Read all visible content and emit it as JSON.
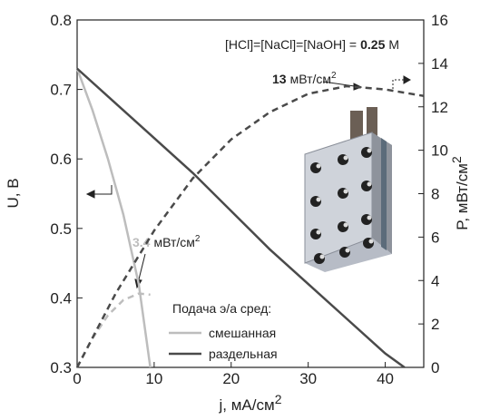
{
  "chart_data": {
    "type": "line",
    "xlabel": {
      "main": "j, мА/см",
      "sup": "2"
    },
    "ylabel": "U, В",
    "y2label": {
      "main": "P, мВт/см",
      "sup": "2"
    },
    "xlim": [
      0,
      45
    ],
    "xticks": [
      0,
      10,
      20,
      30,
      40
    ],
    "ylim": [
      0.3,
      0.8
    ],
    "yticks": [
      0.3,
      0.4,
      0.5,
      0.6,
      0.7,
      0.8
    ],
    "y2lim": [
      0,
      16
    ],
    "y2ticks": [
      0,
      2,
      4,
      6,
      8,
      10,
      12,
      14,
      16
    ],
    "legend_title": "Подача э/а сред:",
    "series": [
      {
        "name": "смешанная",
        "color": "#bdbdbd",
        "dash": false,
        "x": [
          0,
          2,
          4,
          6,
          8,
          9.5
        ],
        "values": [
          0.73,
          0.67,
          0.6,
          0.52,
          0.42,
          0.3
        ]
      },
      {
        "name": "раздельная",
        "color": "#4a4a4a",
        "dash": false,
        "x": [
          0,
          5,
          10,
          15,
          20,
          25,
          30,
          35,
          40,
          42.5
        ],
        "values": [
          0.73,
          0.68,
          0.63,
          0.58,
          0.525,
          0.47,
          0.42,
          0.37,
          0.32,
          0.3
        ]
      },
      {
        "color": "#bdbdbd",
        "dash": true,
        "axis": "y2",
        "x": [
          0,
          2,
          4,
          6,
          8,
          9.5
        ],
        "values": [
          0,
          1.34,
          2.4,
          3.1,
          3.4,
          3.35
        ]
      },
      {
        "color": "#4a4a4a",
        "dash": true,
        "axis": "y2",
        "x": [
          0,
          5,
          10,
          15,
          20,
          25,
          30,
          35,
          40,
          45
        ],
        "values": [
          0,
          3.4,
          6.3,
          8.7,
          10.5,
          11.75,
          12.6,
          12.95,
          12.8,
          12.5
        ]
      }
    ],
    "annotations": {
      "conc": {
        "text": "[HCl]=[NaCl]=[NaOH] =",
        "bold": "0.25",
        "unit": "М"
      },
      "peak_sep": {
        "value": "13",
        "unit": "мВт/см",
        "sup": "2"
      },
      "peak_mix": {
        "value": "3.4",
        "unit": "мВт/см",
        "sup": "2"
      }
    }
  }
}
